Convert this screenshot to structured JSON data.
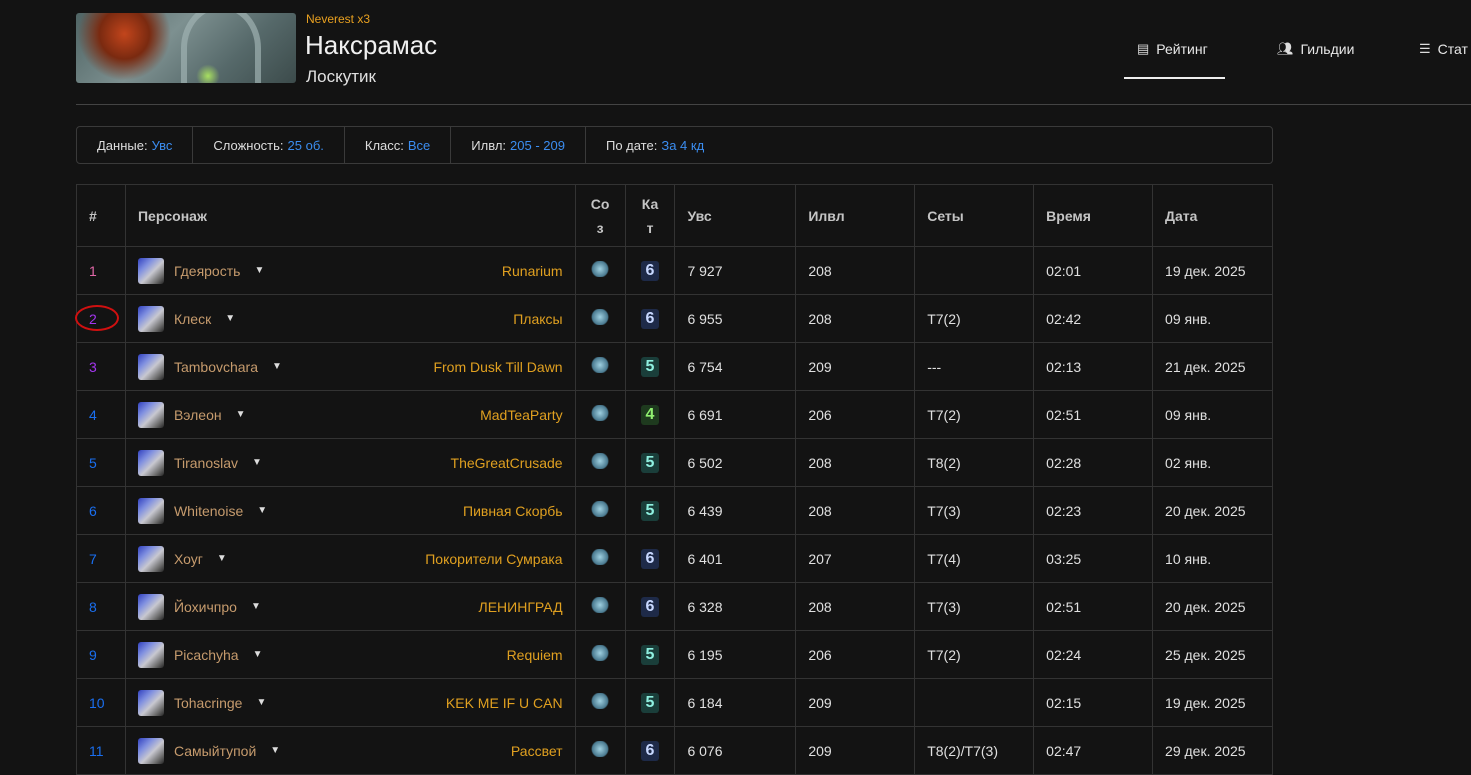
{
  "header": {
    "server": "Neverest x3",
    "title": "Наксрамас",
    "subtitle": "Лоскутик"
  },
  "nav": [
    {
      "label": "Рейтинг",
      "icon": "table-icon",
      "active": true
    },
    {
      "label": "Гильдии",
      "icon": "users-icon"
    },
    {
      "label": "Стат",
      "icon": "chart-icon"
    }
  ],
  "filters": [
    {
      "label": "Данные:",
      "value": "Увс"
    },
    {
      "label": "Сложность:",
      "value": "25 об."
    },
    {
      "label": "Класс:",
      "value": "Все"
    },
    {
      "label": "Илвл:",
      "value": "205 - 209"
    },
    {
      "label": "По дате:",
      "value": "За 4 кд"
    }
  ],
  "table": {
    "headers": {
      "rank": "#",
      "character": "Персонаж",
      "spec": "Со з",
      "cat": "Ка т",
      "dps": "Увс",
      "ilvl": "Илвл",
      "sets": "Сеты",
      "time": "Время",
      "date": "Дата"
    },
    "rows": [
      {
        "rank": "1",
        "name": "Гдеярость",
        "guild": "Runarium",
        "cat": "6",
        "dps": "7 927",
        "ilvl": "208",
        "sets": "",
        "time": "02:01",
        "date": "19 дек. 2025",
        "rank_color": "#e268a8"
      },
      {
        "rank": "2",
        "name": "Клеск",
        "guild": "Плаксы",
        "cat": "6",
        "dps": "6 955",
        "ilvl": "208",
        "sets": "T7(2)",
        "time": "02:42",
        "date": "09 янв.",
        "rank_color": "#a335ee"
      },
      {
        "rank": "3",
        "name": "Tambovchara",
        "guild": "From Dusk Till Dawn",
        "cat": "5",
        "dps": "6 754",
        "ilvl": "209",
        "sets": "---",
        "time": "02:13",
        "date": "21 дек. 2025",
        "rank_color": "#a335ee"
      },
      {
        "rank": "4",
        "name": "Вэлеон",
        "guild": "MadTeaParty",
        "cat": "4",
        "dps": "6 691",
        "ilvl": "206",
        "sets": "T7(2)",
        "time": "02:51",
        "date": "09 янв.",
        "rank_color": "#1a6ff0"
      },
      {
        "rank": "5",
        "name": "Tiranoslav",
        "guild": "TheGreatCrusade",
        "cat": "5",
        "dps": "6 502",
        "ilvl": "208",
        "sets": "T8(2)",
        "time": "02:28",
        "date": "02 янв.",
        "rank_color": "#1a6ff0"
      },
      {
        "rank": "6",
        "name": "Whitenoise",
        "guild": "Пивная Скорбь",
        "cat": "5",
        "dps": "6 439",
        "ilvl": "208",
        "sets": "T7(3)",
        "time": "02:23",
        "date": "20 дек. 2025",
        "rank_color": "#1a6ff0"
      },
      {
        "rank": "7",
        "name": "Хоуг",
        "guild": "Покорители Сумрака",
        "cat": "6",
        "dps": "6 401",
        "ilvl": "207",
        "sets": "T7(4)",
        "time": "03:25",
        "date": "10 янв.",
        "rank_color": "#1a6ff0"
      },
      {
        "rank": "8",
        "name": "Йохичпро",
        "guild": "ЛЕНИНГРАД",
        "cat": "6",
        "dps": "6 328",
        "ilvl": "208",
        "sets": "T7(3)",
        "time": "02:51",
        "date": "20 дек. 2025",
        "rank_color": "#1a6ff0"
      },
      {
        "rank": "9",
        "name": "Picachyha",
        "guild": "Requiem",
        "cat": "5",
        "dps": "6 195",
        "ilvl": "206",
        "sets": "T7(2)",
        "time": "02:24",
        "date": "25 дек. 2025",
        "rank_color": "#1a6ff0"
      },
      {
        "rank": "10",
        "name": "Tohacringe",
        "guild": "KEK ME IF U CAN",
        "cat": "5",
        "dps": "6 184",
        "ilvl": "209",
        "sets": "",
        "time": "02:15",
        "date": "19 дек. 2025",
        "rank_color": "#1a6ff0"
      },
      {
        "rank": "11",
        "name": "Самыйтупой",
        "guild": "Рассвет",
        "cat": "6",
        "dps": "6 076",
        "ilvl": "209",
        "sets": "T8(2)/T7(3)",
        "time": "02:47",
        "date": "29 дек. 2025",
        "rank_color": "#1a6ff0"
      }
    ]
  },
  "colors": {
    "cat_6": "#1e2a48",
    "cat_5": "#1a3e3a",
    "cat_4": "#1e3a1e"
  }
}
